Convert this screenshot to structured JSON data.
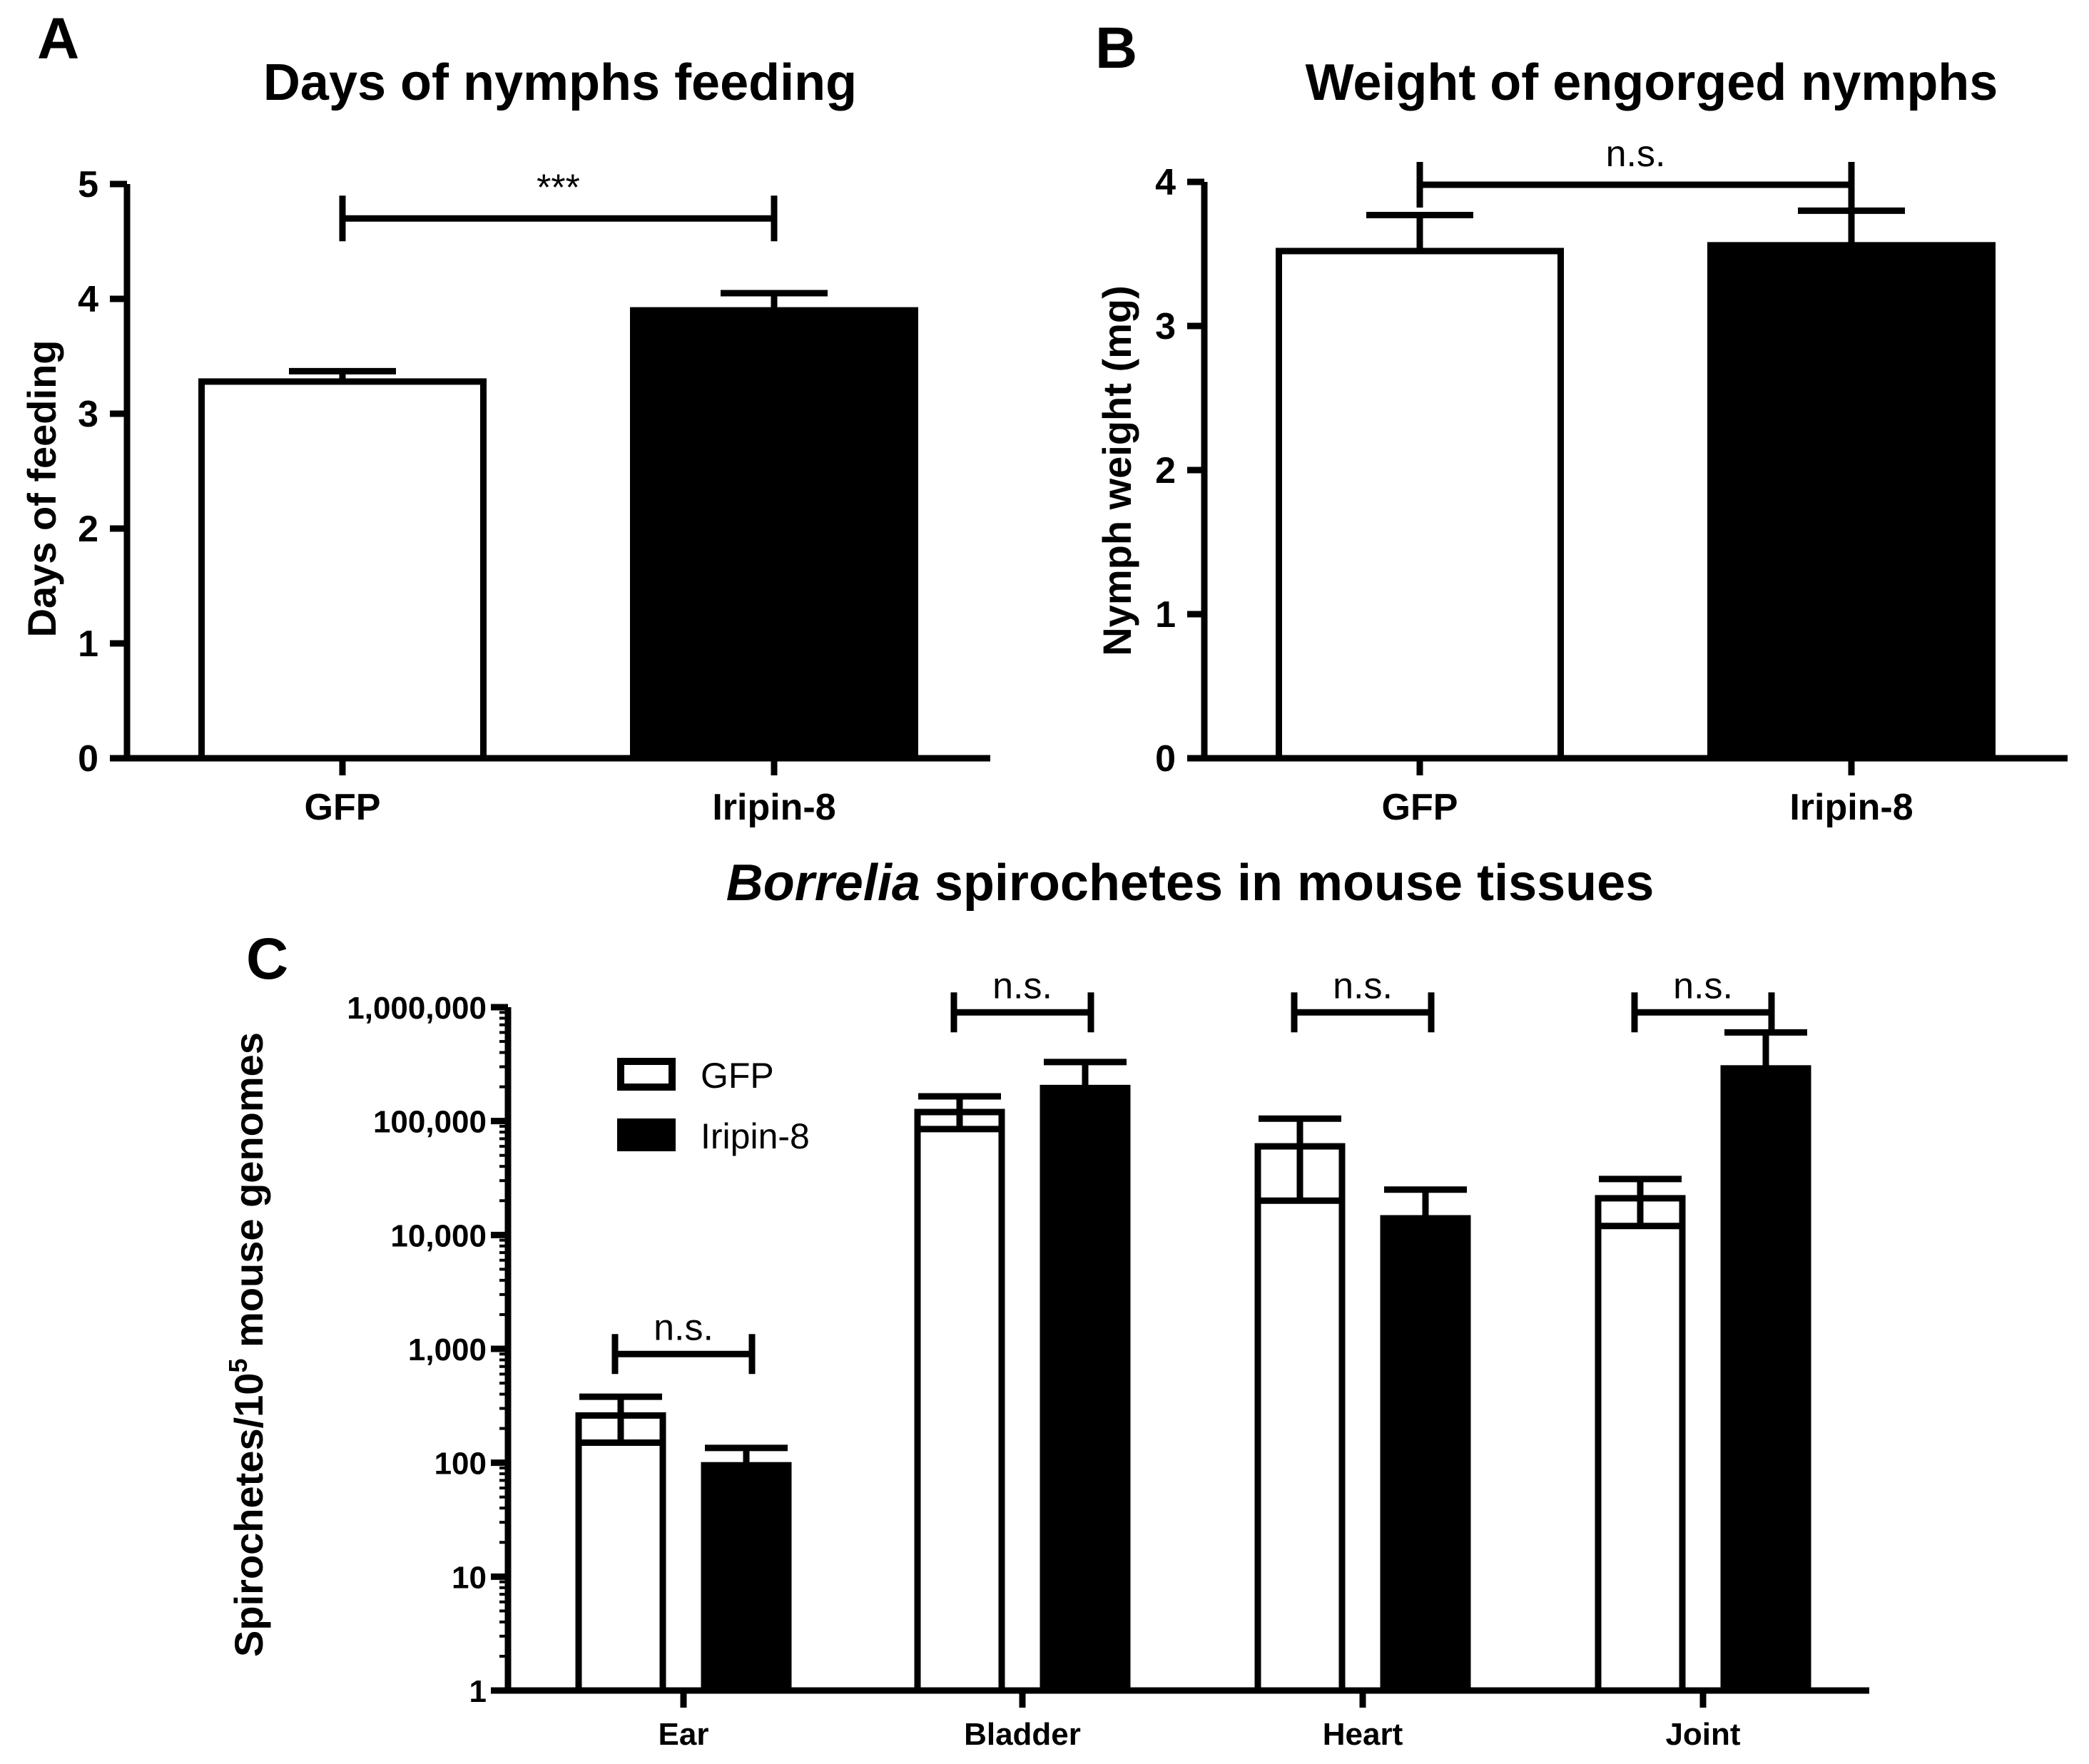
{
  "colors": {
    "gfp_fill": "#ffffff",
    "iripin_fill": "#000000",
    "stroke": "#000000"
  },
  "chart_data": [
    {
      "panel": "A",
      "type": "bar",
      "title": "Days of nymphs feeding",
      "xlabel": "",
      "ylabel": "Days of feeding",
      "categories": [
        "GFP",
        "Iripin-8"
      ],
      "values": [
        3.28,
        3.9
      ],
      "errors": [
        0.09,
        0.15
      ],
      "fills": [
        "#ffffff",
        "#000000"
      ],
      "ylim": [
        0,
        5
      ],
      "yticks": [
        0,
        1,
        2,
        3,
        4,
        5
      ],
      "ytick_labels": [
        "0",
        "1",
        "2",
        "3",
        "4",
        "5"
      ],
      "significance": [
        {
          "from": 0,
          "to": 1,
          "label": "***",
          "y": 4.7
        }
      ]
    },
    {
      "panel": "B",
      "type": "bar",
      "title": "Weight of engorged nymphs",
      "xlabel": "",
      "ylabel": "Nymph weight (mg)",
      "categories": [
        "GFP",
        "Iripin-8"
      ],
      "values": [
        3.52,
        3.56
      ],
      "errors": [
        0.25,
        0.24
      ],
      "fills": [
        "#ffffff",
        "#000000"
      ],
      "ylim": [
        0,
        4
      ],
      "yticks": [
        0,
        1,
        2,
        3,
        4
      ],
      "ytick_labels": [
        "0",
        "1",
        "2",
        "3",
        "4"
      ],
      "significance": [
        {
          "from": 0,
          "to": 1,
          "label": "n.s.",
          "y": 3.98
        }
      ]
    },
    {
      "panel": "C",
      "type": "bar",
      "scale": "log",
      "title_italic": "Borrelia",
      "title_rest": " spirochetes in mouse tissues",
      "xlabel": "",
      "ylabel_main": "Spirochetes/10",
      "ylabel_sup": "5",
      "ylabel_tail": " mouse genomes",
      "categories": [
        "Ear",
        "Bladder",
        "Heart",
        "Joint"
      ],
      "series": [
        {
          "name": "GFP",
          "fill": "#ffffff",
          "values": [
            260,
            120000,
            60000,
            21000
          ],
          "err_low": [
            150,
            85000,
            20000,
            12000
          ],
          "err_high": [
            380,
            165000,
            105000,
            31000
          ]
        },
        {
          "name": "Iripin-8",
          "fill": "#000000",
          "values": [
            95,
            195000,
            14000,
            290000
          ],
          "err_low": [
            95,
            195000,
            14000,
            290000
          ],
          "err_high": [
            135,
            330000,
            25000,
            600000
          ]
        }
      ],
      "ylim": [
        1,
        1000000
      ],
      "yticks": [
        1,
        10,
        100,
        1000,
        10000,
        100000,
        1000000
      ],
      "ytick_labels": [
        "1",
        "10",
        "100",
        "1,000",
        "10,000",
        "100,000",
        "1,000,000"
      ],
      "significance": [
        {
          "category": 0,
          "label": "n.s.",
          "y": 900
        },
        {
          "category": 1,
          "label": "n.s.",
          "y": 900000
        },
        {
          "category": 2,
          "label": "n.s.",
          "y": 900000
        },
        {
          "category": 3,
          "label": "n.s.",
          "y": 900000
        }
      ],
      "legend_position": "top-left"
    }
  ]
}
